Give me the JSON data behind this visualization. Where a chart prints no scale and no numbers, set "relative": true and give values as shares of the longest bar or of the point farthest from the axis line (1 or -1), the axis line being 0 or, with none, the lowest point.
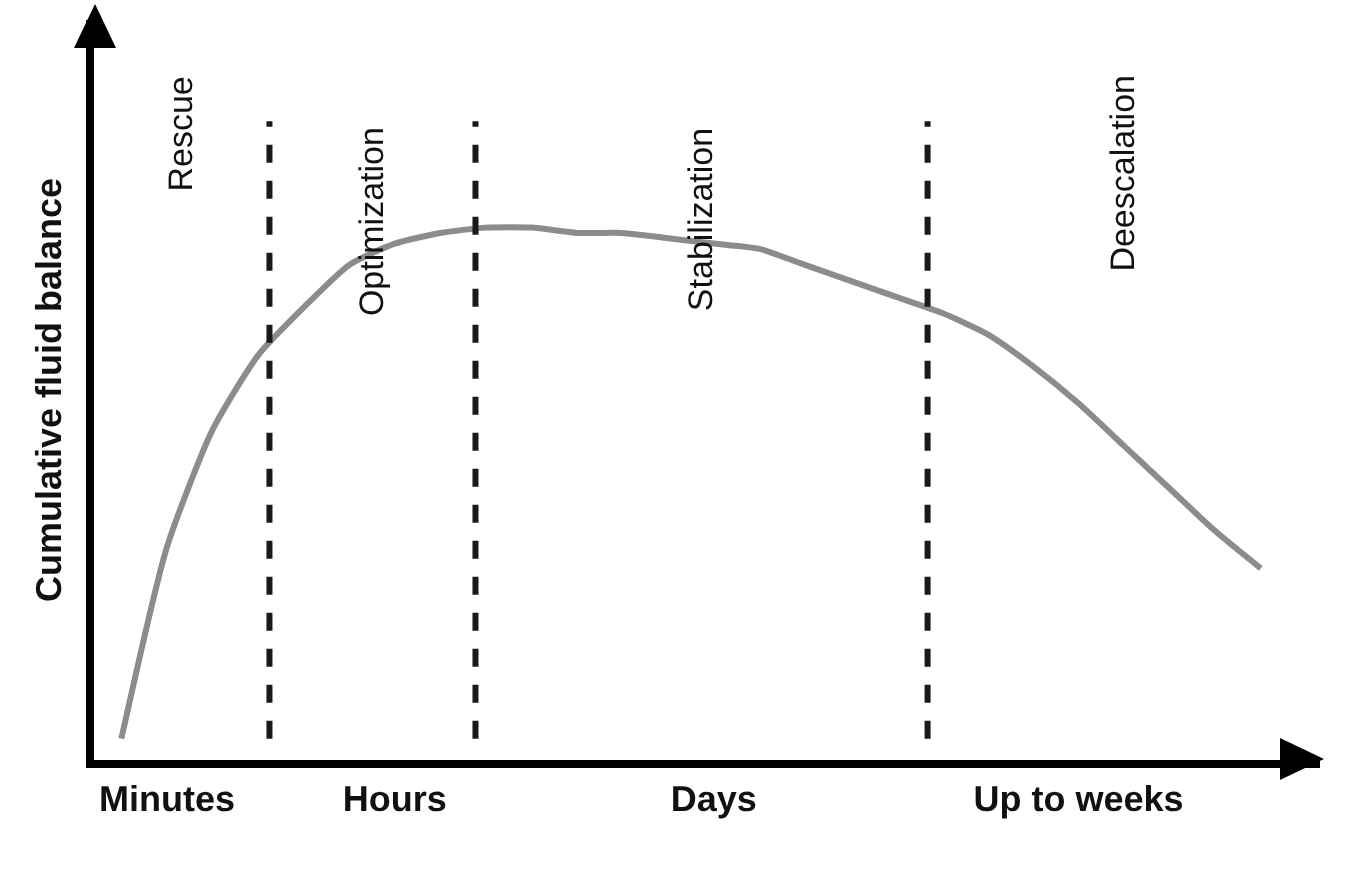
{
  "chart_data": {
    "type": "line",
    "relative": true,
    "ylabel": "Cumulative fluid balance",
    "categories": [
      null,
      "Minutes",
      null,
      null,
      null,
      null,
      "Hours",
      null,
      null,
      null,
      null,
      null,
      null,
      "Days",
      null,
      null,
      null,
      null,
      null,
      null,
      null,
      "Up to weeks",
      null,
      null,
      null,
      null
    ],
    "series": [
      {
        "color": "#8c8c8c",
        "values": [
          0.04,
          0.4,
          0.62,
          0.76,
          0.85,
          0.93,
          0.97,
          0.99,
          1,
          1,
          0.99,
          0.99,
          0.98,
          0.97,
          0.96,
          0.93,
          0.9,
          0.87,
          0.84,
          0.8,
          0.74,
          0.67,
          0.59,
          0.51,
          0.43,
          0.36
        ]
      }
    ],
    "annotations": [
      "Rescue",
      "Optimization",
      "Stabilization",
      "Deescalation"
    ],
    "marker": "none",
    "line_style": "solid"
  }
}
